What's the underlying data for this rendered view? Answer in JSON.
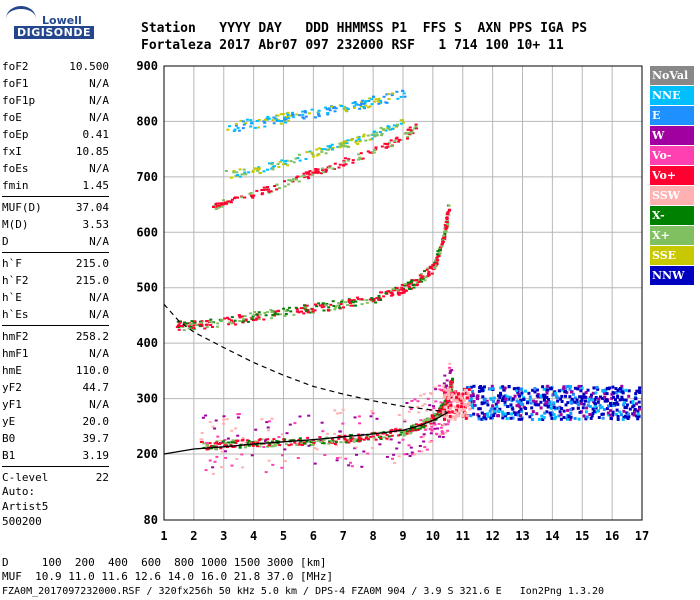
{
  "logo": {
    "line1": "Lowell",
    "line2": "DIGISONDE"
  },
  "header": {
    "labels": "Station   YYYY DAY   DDD HHMMSS P1  FFS S  AXN PPS IGA PS",
    "values": "Fortaleza 2017 Abr07 097 232000 RSF   1 714 100 10+ 11"
  },
  "params": {
    "group1": [
      {
        "name": "foF2",
        "value": "10.500"
      },
      {
        "name": "foF1",
        "value": "N/A"
      },
      {
        "name": "foF1p",
        "value": "N/A"
      },
      {
        "name": "foE",
        "value": "N/A"
      },
      {
        "name": "foEp",
        "value": "0.41"
      },
      {
        "name": "fxI",
        "value": "10.85"
      },
      {
        "name": "foEs",
        "value": "N/A"
      },
      {
        "name": "fmin",
        "value": "1.45"
      }
    ],
    "group2": [
      {
        "name": "MUF(D)",
        "value": "37.04"
      },
      {
        "name": "M(D)",
        "value": "3.53"
      },
      {
        "name": "D",
        "value": "N/A"
      }
    ],
    "group3": [
      {
        "name": "h`F",
        "value": "215.0"
      },
      {
        "name": "h`F2",
        "value": "215.0"
      },
      {
        "name": "h`E",
        "value": "N/A"
      },
      {
        "name": "h`Es",
        "value": "N/A"
      }
    ],
    "group4": [
      {
        "name": "hmF2",
        "value": "258.2"
      },
      {
        "name": "hmF1",
        "value": "N/A"
      },
      {
        "name": "hmE",
        "value": "110.0"
      },
      {
        "name": "yF2",
        "value": "44.7"
      },
      {
        "name": "yF1",
        "value": "N/A"
      },
      {
        "name": "yE",
        "value": "20.0"
      },
      {
        "name": "B0",
        "value": "39.7"
      },
      {
        "name": "B1",
        "value": "3.19"
      }
    ],
    "group5": [
      {
        "name": "C-level",
        "value": "22"
      }
    ]
  },
  "auto": {
    "line1": "Auto:",
    "line2": "Artist5",
    "line3": "500200"
  },
  "legend": [
    {
      "label": "NoVal",
      "color": "#888888"
    },
    {
      "label": "NNE",
      "color": "#00bfff"
    },
    {
      "label": "E",
      "color": "#1e90ff"
    },
    {
      "label": "W",
      "color": "#a000a0"
    },
    {
      "label": "Vo-",
      "color": "#ff40b0"
    },
    {
      "label": "Vo+",
      "color": "#ff0030"
    },
    {
      "label": "SSW",
      "color": "#ffb0b0"
    },
    {
      "label": "X-",
      "color": "#008000"
    },
    {
      "label": "X+",
      "color": "#80c060"
    },
    {
      "label": "SSE",
      "color": "#c8c800"
    },
    {
      "label": "NNW",
      "color": "#0000c0"
    }
  ],
  "footer": {
    "d_row": "D     100  200  400  600  800 1000 1500 3000 [km]",
    "muf_row": "MUF  10.9 11.0 11.6 12.6 14.0 16.0 21.8 37.0 [MHz]",
    "file_row": "FZA0M_2017097232000.RSF / 320fx256h 50 kHz 5.0 km / DPS-4 FZA0M 904 / 3.9 S 321.6 E   Ion2Png 1.3.20"
  },
  "chart_data": {
    "type": "scatter",
    "x_ticks": [
      1,
      2,
      3,
      4,
      5,
      6,
      7,
      8,
      9,
      10,
      11,
      12,
      13,
      14,
      15,
      16,
      17
    ],
    "y_ticks": [
      80,
      200,
      300,
      400,
      500,
      600,
      700,
      800,
      900
    ],
    "xlim": [
      1,
      17
    ],
    "ylim": [
      80,
      900
    ],
    "grid": true,
    "traces": {
      "o_trace_1hop": [
        [
          2.2,
          217
        ],
        [
          3,
          219
        ],
        [
          4,
          221
        ],
        [
          5,
          223
        ],
        [
          6,
          225
        ],
        [
          7,
          228
        ],
        [
          8,
          233
        ],
        [
          9,
          242
        ],
        [
          9.5,
          252
        ],
        [
          10,
          266
        ],
        [
          10.3,
          285
        ],
        [
          10.5,
          305
        ],
        [
          10.6,
          335
        ]
      ],
      "o_trace_2hop": [
        [
          1.4,
          433
        ],
        [
          2,
          434
        ],
        [
          3,
          440
        ],
        [
          4,
          450
        ],
        [
          5,
          458
        ],
        [
          6,
          465
        ],
        [
          7,
          472
        ],
        [
          8,
          482
        ],
        [
          9,
          500
        ],
        [
          9.5,
          515
        ],
        [
          10,
          540
        ],
        [
          10.2,
          570
        ],
        [
          10.4,
          610
        ],
        [
          10.5,
          650
        ]
      ],
      "o_trace_3hop": [
        [
          2.6,
          648
        ],
        [
          3,
          655
        ],
        [
          4,
          670
        ],
        [
          5,
          690
        ],
        [
          6,
          710
        ],
        [
          7,
          728
        ],
        [
          8,
          748
        ],
        [
          9,
          772
        ],
        [
          9.4,
          795
        ]
      ],
      "x_trace_3hop": [
        [
          3,
          705
        ],
        [
          4,
          712
        ],
        [
          5,
          728
        ],
        [
          6,
          745
        ],
        [
          7,
          760
        ],
        [
          8,
          778
        ],
        [
          9,
          800
        ]
      ],
      "e_trace_upper": [
        [
          3,
          790
        ],
        [
          4,
          798
        ],
        [
          5,
          808
        ],
        [
          6,
          815
        ],
        [
          7,
          825
        ],
        [
          8,
          838
        ],
        [
          9,
          850
        ]
      ],
      "spread_f_band": {
        "x_range": [
          11.1,
          16.9
        ],
        "y_range": [
          265,
          325
        ]
      },
      "ne_profile": [
        [
          1,
          200
        ],
        [
          2,
          209
        ],
        [
          3,
          213
        ],
        [
          4,
          218
        ],
        [
          5,
          222
        ],
        [
          6,
          226
        ],
        [
          7,
          231
        ],
        [
          8,
          236
        ],
        [
          9,
          243
        ],
        [
          9.6,
          252
        ],
        [
          10.1,
          263
        ],
        [
          10.5,
          275
        ]
      ],
      "dashed_curve": [
        [
          1,
          470
        ],
        [
          1.5,
          440
        ],
        [
          2,
          420
        ],
        [
          3,
          392
        ],
        [
          4,
          365
        ],
        [
          5,
          342
        ],
        [
          6,
          322
        ],
        [
          7,
          308
        ],
        [
          8,
          296
        ],
        [
          9,
          286
        ],
        [
          9.6,
          282
        ],
        [
          10.2,
          278
        ],
        [
          10.5,
          275
        ]
      ]
    }
  }
}
